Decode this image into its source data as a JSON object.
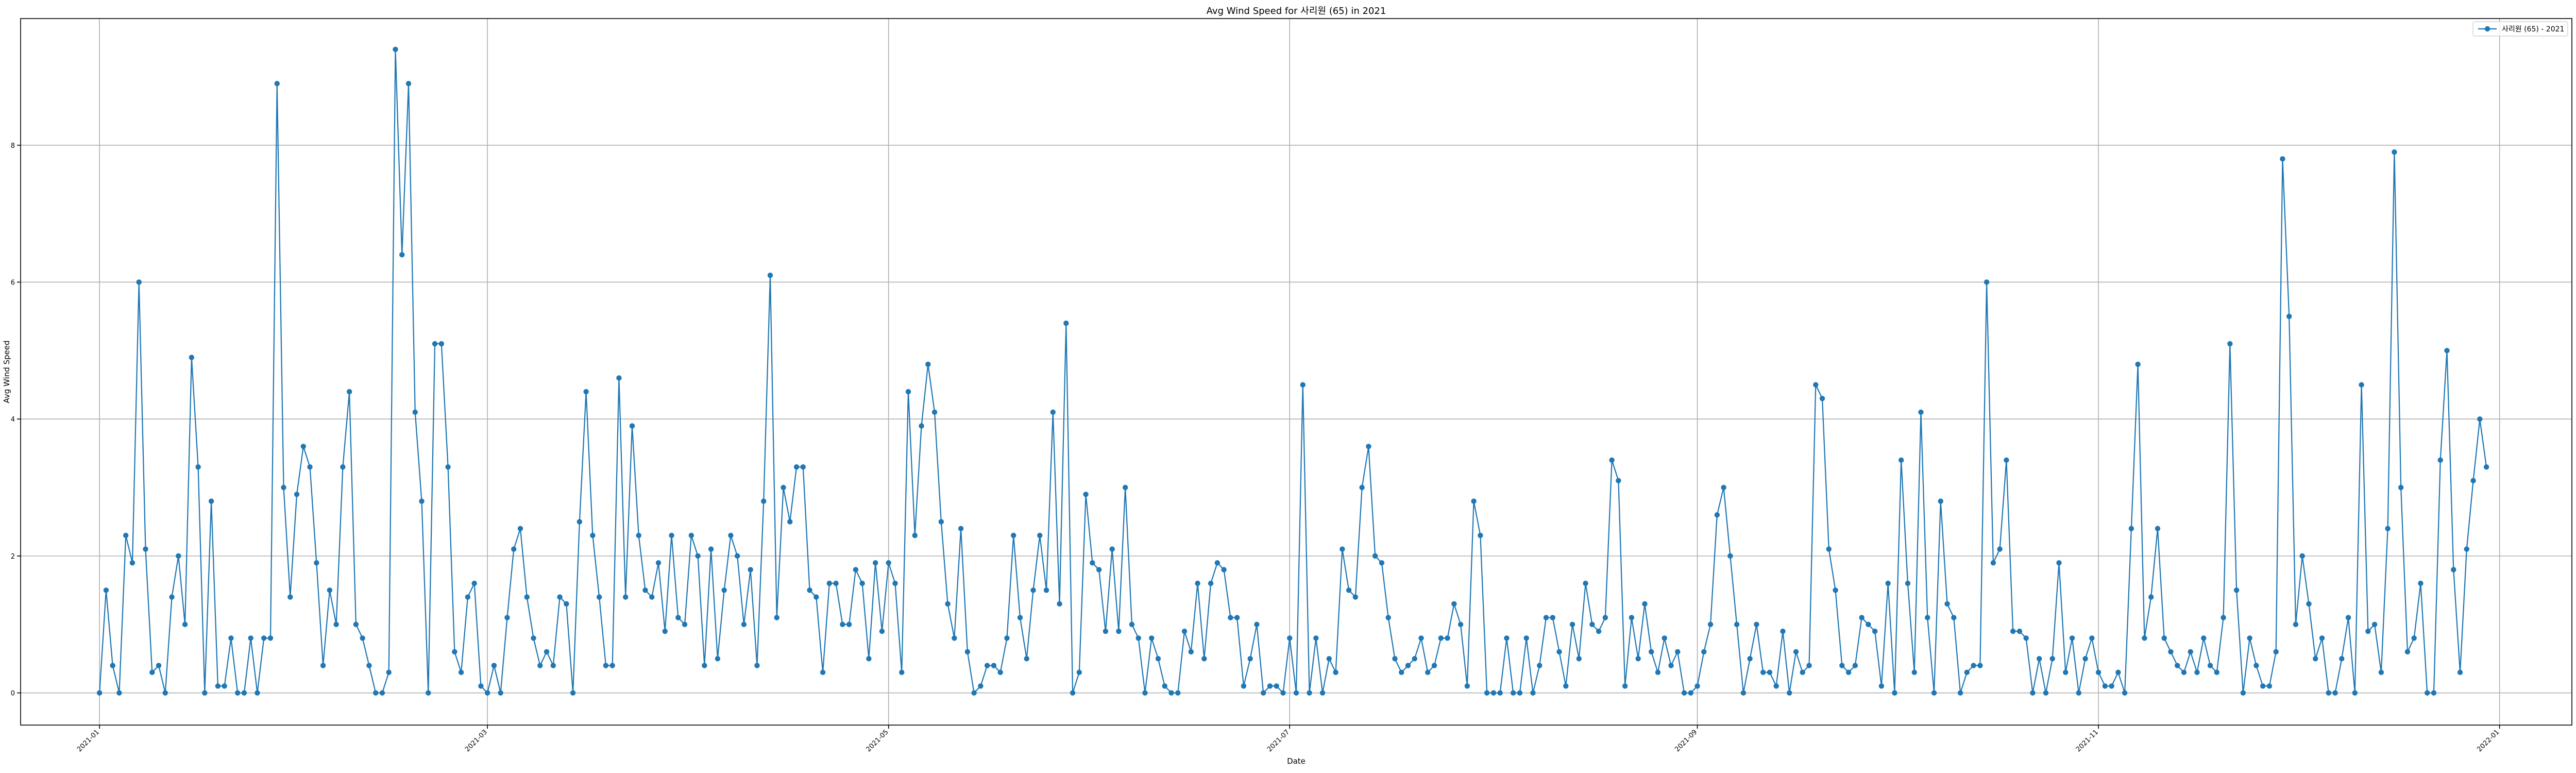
{
  "chart_data": {
    "type": "line",
    "title": "Avg Wind Speed for 사리원 (65) in 2021",
    "xlabel": "Date",
    "ylabel": "Avg Wind Speed",
    "x_start": "2021-01-01",
    "x_step_days": 1,
    "xlim": [
      "2020-12-20",
      "2022-01-12"
    ],
    "ylim": [
      -0.47,
      9.85
    ],
    "x_ticks": [
      "2021-01",
      "2021-03",
      "2021-05",
      "2021-07",
      "2021-09",
      "2021-11",
      "2022-01"
    ],
    "y_ticks": [
      0,
      2,
      4,
      6,
      8
    ],
    "grid": true,
    "legend_position": "top-right",
    "color": "#1f77b4",
    "series": [
      {
        "name": "사리원 (65) - 2021",
        "values": [
          0,
          1.5,
          0.4,
          0,
          2.3,
          1.9,
          6,
          2.1,
          0.3,
          0.4,
          0,
          1.4,
          2,
          1,
          4.9,
          3.3,
          0,
          2.8,
          0.1,
          0.1,
          0.8,
          0,
          0,
          0.8,
          0,
          0.8,
          0.8,
          8.9,
          3,
          1.4,
          2.9,
          3.6,
          3.3,
          1.9,
          0.4,
          1.5,
          1,
          3.3,
          4.4,
          1,
          0.8,
          0.4,
          0,
          0,
          0.3,
          9.4,
          6.4,
          8.9,
          4.1,
          2.8,
          0,
          5.1,
          5.1,
          3.3,
          0.6,
          0.3,
          1.4,
          1.6,
          0.1,
          0,
          0.4,
          0,
          1.1,
          2.1,
          2.4,
          1.4,
          0.8,
          0.4,
          0.6,
          0.4,
          1.4,
          1.3,
          0,
          2.5,
          4.4,
          2.3,
          1.4,
          0.4,
          0.4,
          4.6,
          1.4,
          3.9,
          2.3,
          1.5,
          1.4,
          1.9,
          0.9,
          2.3,
          1.1,
          1,
          2.3,
          2,
          0.4,
          2.1,
          0.5,
          1.5,
          2.3,
          2,
          1,
          1.8,
          0.4,
          2.8,
          6.1,
          1.1,
          3,
          2.5,
          3.3,
          3.3,
          1.5,
          1.4,
          0.3,
          1.6,
          1.6,
          1,
          1,
          1.8,
          1.6,
          0.5,
          1.9,
          0.9,
          1.9,
          1.6,
          0.3,
          4.4,
          2.3,
          3.9,
          4.8,
          4.1,
          2.5,
          1.3,
          0.8,
          2.4,
          0.6,
          0,
          0.1,
          0.4,
          0.4,
          0.3,
          0.8,
          2.3,
          1.1,
          0.5,
          1.5,
          2.3,
          1.5,
          4.1,
          1.3,
          5.4,
          0,
          0.3,
          2.9,
          1.9,
          1.8,
          0.9,
          2.1,
          0.9,
          3,
          1,
          0.8,
          0,
          0.8,
          0.5,
          0.1,
          0,
          0,
          0.9,
          0.6,
          1.6,
          0.5,
          1.6,
          1.9,
          1.8,
          1.1,
          1.1,
          0.1,
          0.5,
          1,
          0,
          0.1,
          0.1,
          0,
          0.8,
          0,
          4.5,
          0,
          0.8,
          0,
          0.5,
          0.3,
          2.1,
          1.5,
          1.4,
          3,
          3.6,
          2,
          1.9,
          1.1,
          0.5,
          0.3,
          0.4,
          0.5,
          0.8,
          0.3,
          0.4,
          0.8,
          0.8,
          1.3,
          1,
          0.1,
          2.8,
          2.3,
          0,
          0,
          0,
          0.8,
          0,
          0,
          0.8,
          0,
          0.4,
          1.1,
          1.1,
          0.6,
          0.1,
          1,
          0.5,
          1.6,
          1,
          0.9,
          1.1,
          3.4,
          3.1,
          0.1,
          1.1,
          0.5,
          1.3,
          0.6,
          0.3,
          0.8,
          0.4,
          0.6,
          0,
          0,
          0.1,
          0.6,
          1,
          2.6,
          3,
          2,
          1,
          0,
          0.5,
          1,
          0.3,
          0.3,
          0.1,
          0.9,
          0,
          0.6,
          0.3,
          0.4,
          4.5,
          4.3,
          2.1,
          1.5,
          0.4,
          0.3,
          0.4,
          1.1,
          1,
          0.9,
          0.1,
          1.6,
          0,
          3.4,
          1.6,
          0.3,
          4.1,
          1.1,
          0,
          2.8,
          1.3,
          1.1,
          0,
          0.3,
          0.4,
          0.4,
          6,
          1.9,
          2.1,
          3.4,
          0.9,
          0.9,
          0.8,
          0,
          0.5,
          0,
          0.5,
          1.9,
          0.3,
          0.8,
          0,
          0.5,
          0.8,
          0.3,
          0.1,
          0.1,
          0.3,
          0,
          2.4,
          4.8,
          0.8,
          1.4,
          2.4,
          0.8,
          0.6,
          0.4,
          0.3,
          0.6,
          0.3,
          0.8,
          0.4,
          0.3,
          1.1,
          5.1,
          1.5,
          0,
          0.8,
          0.4,
          0.1,
          0.1,
          0.6,
          7.8,
          5.5,
          1,
          2,
          1.3,
          0.5,
          0.8,
          0,
          0,
          0.5,
          1.1,
          0,
          4.5,
          0.9,
          1,
          0.3,
          2.4,
          7.9,
          3,
          0.6,
          0.8,
          1.6,
          0,
          0,
          3.4,
          5,
          1.8,
          0.3,
          2.1,
          3.1,
          4,
          3.3
        ]
      }
    ]
  }
}
